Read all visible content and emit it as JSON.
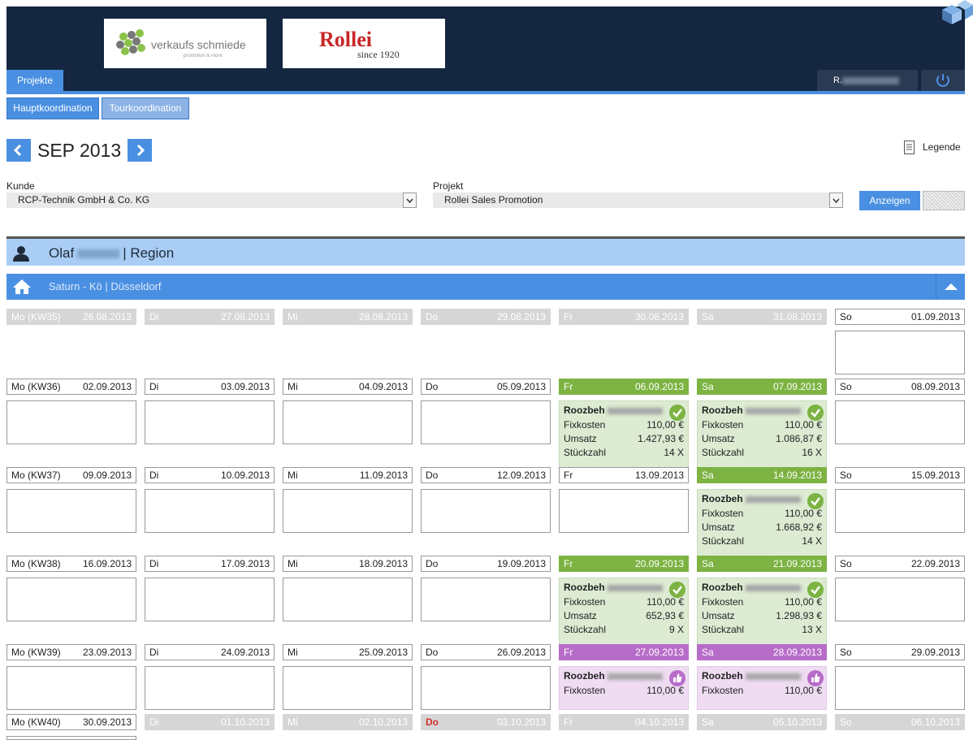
{
  "logos": {
    "logo1": "verkaufs schmiede",
    "logo1_sub": "promotion & more",
    "logo2": "Rollei",
    "logo2_sub": "since 1920"
  },
  "nav": {
    "projects_tab": "Projekte",
    "user": "R."
  },
  "subtabs": {
    "main": "Hauptkoordination",
    "tour": "Tourkoordination"
  },
  "month": {
    "label": "SEP 2013"
  },
  "legend_label": "Legende",
  "filters": {
    "kunde_label": "Kunde",
    "kunde_value": "RCP-Technik GmbH & Co. KG",
    "projekt_label": "Projekt",
    "projekt_value": "Rollei Sales Promotion",
    "show_button": "Anzeigen"
  },
  "person": {
    "first": "Olaf",
    "region": "| Region"
  },
  "store": {
    "name": "Saturn - Kö | Düsseldorf"
  },
  "labels": {
    "fix": "Fixkosten",
    "umsatz": "Umsatz",
    "stueck": "Stückzahl",
    "promoter": "Roozbeh"
  },
  "weeks": [
    {
      "days": [
        {
          "l": "Mo (KW35)",
          "d": "26.08.2013"
        },
        {
          "l": "Di",
          "d": "27.08.2013"
        },
        {
          "l": "Mi",
          "d": "28.08.2013"
        },
        {
          "l": "Do",
          "d": "29.08.2013"
        },
        {
          "l": "Fr",
          "d": "30.08.2013"
        },
        {
          "l": "Sa",
          "d": "31.08.2013"
        },
        {
          "l": "So",
          "d": "01.09.2013"
        }
      ]
    },
    {
      "days": [
        {
          "l": "Mo (KW36)",
          "d": "02.09.2013"
        },
        {
          "l": "Di",
          "d": "03.09.2013"
        },
        {
          "l": "Mi",
          "d": "04.09.2013"
        },
        {
          "l": "Do",
          "d": "05.09.2013"
        },
        {
          "l": "Fr",
          "d": "06.09.2013"
        },
        {
          "l": "Sa",
          "d": "07.09.2013"
        },
        {
          "l": "So",
          "d": "08.09.2013"
        }
      ]
    },
    {
      "days": [
        {
          "l": "Mo (KW37)",
          "d": "09.09.2013"
        },
        {
          "l": "Di",
          "d": "10.09.2013"
        },
        {
          "l": "Mi",
          "d": "11.09.2013"
        },
        {
          "l": "Do",
          "d": "12.09.2013"
        },
        {
          "l": "Fr",
          "d": "13.09.2013"
        },
        {
          "l": "Sa",
          "d": "14.09.2013"
        },
        {
          "l": "So",
          "d": "15.09.2013"
        }
      ]
    },
    {
      "days": [
        {
          "l": "Mo (KW38)",
          "d": "16.09.2013"
        },
        {
          "l": "Di",
          "d": "17.09.2013"
        },
        {
          "l": "Mi",
          "d": "18.09.2013"
        },
        {
          "l": "Do",
          "d": "19.09.2013"
        },
        {
          "l": "Fr",
          "d": "20.09.2013"
        },
        {
          "l": "Sa",
          "d": "21.09.2013"
        },
        {
          "l": "So",
          "d": "22.09.2013"
        }
      ]
    },
    {
      "days": [
        {
          "l": "Mo (KW39)",
          "d": "23.09.2013"
        },
        {
          "l": "Di",
          "d": "24.09.2013"
        },
        {
          "l": "Mi",
          "d": "25.09.2013"
        },
        {
          "l": "Do",
          "d": "26.09.2013"
        },
        {
          "l": "Fr",
          "d": "27.09.2013"
        },
        {
          "l": "Sa",
          "d": "28.09.2013"
        },
        {
          "l": "So",
          "d": "29.09.2013"
        }
      ]
    },
    {
      "days": [
        {
          "l": "Mo (KW40)",
          "d": "30.09.2013"
        },
        {
          "l": "Di",
          "d": "01.10.2013"
        },
        {
          "l": "Mi",
          "d": "02.10.2013"
        },
        {
          "l": "Do",
          "d": "03.10.2013"
        },
        {
          "l": "Fr",
          "d": "04.10.2013"
        },
        {
          "l": "Sa",
          "d": "05.10.2013"
        },
        {
          "l": "So",
          "d": "06.10.2013"
        }
      ]
    }
  ],
  "entries": {
    "fr06": {
      "fix": "110,00 €",
      "umsatz": "1.427,93 €",
      "stueck": "14 X"
    },
    "sa07": {
      "fix": "110,00 €",
      "umsatz": "1.086,87 €",
      "stueck": "16 X"
    },
    "sa14": {
      "fix": "110,00 €",
      "umsatz": "1.668,92 €",
      "stueck": "14 X"
    },
    "fr20": {
      "fix": "110,00 €",
      "umsatz": "652,93 €",
      "stueck": "9 X"
    },
    "sa21": {
      "fix": "110,00 €",
      "umsatz": "1.298,93 €",
      "stueck": "13 X"
    },
    "fr27": {
      "fix": "110,00 €"
    },
    "sa28": {
      "fix": "110,00 €"
    }
  },
  "colors": {
    "navy": "#142640",
    "blue": "#4a90e2",
    "green": "#7cb342",
    "purple": "#b86cc9",
    "holiday_red": "#d32f2f"
  }
}
